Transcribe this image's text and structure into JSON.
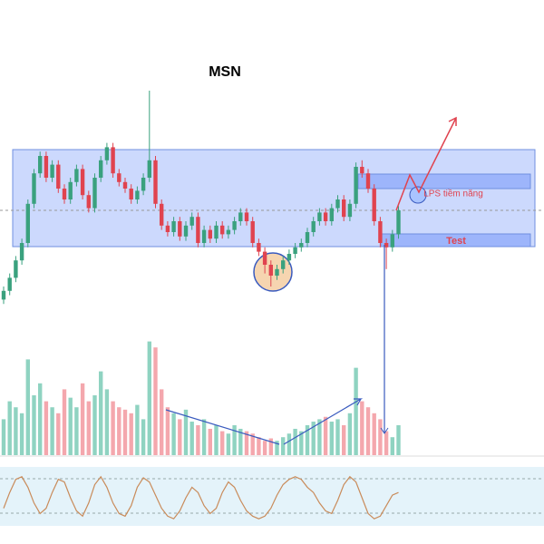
{
  "chart_data": {
    "type": "candlestick",
    "title": "MSN",
    "annotations": [
      "LPS tiềm năng",
      "Test"
    ],
    "open": [
      4,
      8,
      14,
      22,
      30,
      48,
      62,
      70,
      60,
      66,
      55,
      50,
      58,
      64,
      52,
      46,
      60,
      68,
      74,
      62,
      58,
      55,
      50,
      54,
      60,
      68,
      48,
      38,
      35,
      40,
      33,
      38,
      42,
      30,
      36,
      32,
      38,
      34,
      36,
      40,
      44,
      40,
      30,
      26,
      20,
      15,
      18,
      22,
      25,
      28,
      30,
      35,
      40,
      44,
      40,
      46,
      50,
      42,
      48,
      65,
      62,
      55,
      40,
      30,
      28,
      34
    ],
    "high": [
      10,
      16,
      24,
      32,
      50,
      64,
      72,
      72,
      68,
      68,
      57,
      60,
      66,
      66,
      54,
      62,
      70,
      76,
      76,
      64,
      60,
      57,
      56,
      62,
      100,
      70,
      50,
      40,
      42,
      42,
      40,
      44,
      44,
      38,
      38,
      40,
      40,
      38,
      42,
      46,
      46,
      42,
      32,
      28,
      22,
      20,
      24,
      27,
      30,
      32,
      37,
      42,
      46,
      46,
      48,
      52,
      52,
      50,
      67,
      68,
      64,
      57,
      42,
      32,
      36,
      47
    ],
    "low": [
      2,
      6,
      12,
      20,
      28,
      46,
      60,
      58,
      58,
      53,
      48,
      48,
      56,
      50,
      44,
      44,
      58,
      66,
      60,
      56,
      53,
      48,
      48,
      52,
      58,
      46,
      36,
      33,
      33,
      31,
      31,
      36,
      28,
      28,
      30,
      30,
      32,
      32,
      34,
      38,
      38,
      28,
      24,
      16,
      10,
      13,
      16,
      20,
      23,
      26,
      28,
      33,
      38,
      38,
      38,
      44,
      40,
      40,
      46,
      60,
      53,
      38,
      28,
      18,
      26,
      32
    ],
    "close": [
      8,
      14,
      22,
      30,
      48,
      62,
      70,
      60,
      66,
      55,
      50,
      58,
      64,
      52,
      46,
      60,
      68,
      74,
      62,
      58,
      55,
      50,
      54,
      60,
      68,
      48,
      38,
      35,
      40,
      33,
      38,
      42,
      30,
      36,
      32,
      38,
      34,
      36,
      40,
      44,
      40,
      30,
      26,
      20,
      15,
      18,
      22,
      25,
      28,
      30,
      35,
      40,
      44,
      40,
      46,
      50,
      42,
      48,
      65,
      62,
      55,
      40,
      30,
      28,
      34,
      45
    ],
    "volume": [
      30,
      45,
      40,
      35,
      80,
      50,
      60,
      45,
      40,
      35,
      55,
      48,
      40,
      60,
      45,
      50,
      70,
      55,
      45,
      40,
      38,
      35,
      42,
      30,
      95,
      90,
      55,
      40,
      35,
      30,
      38,
      28,
      25,
      30,
      22,
      25,
      20,
      18,
      25,
      22,
      20,
      18,
      15,
      12,
      14,
      12,
      15,
      18,
      22,
      20,
      25,
      28,
      30,
      32,
      28,
      30,
      25,
      35,
      73,
      45,
      40,
      35,
      30,
      20,
      15,
      25
    ],
    "oscillator": [
      30,
      60,
      85,
      90,
      70,
      40,
      20,
      30,
      60,
      85,
      80,
      50,
      25,
      15,
      40,
      75,
      90,
      70,
      40,
      20,
      15,
      35,
      70,
      88,
      80,
      55,
      30,
      15,
      10,
      25,
      50,
      70,
      60,
      35,
      20,
      30,
      60,
      80,
      70,
      45,
      25,
      15,
      10,
      15,
      30,
      55,
      75,
      85,
      90,
      85,
      70,
      60,
      40,
      25,
      20,
      45,
      75,
      90,
      80,
      50,
      20,
      10,
      15,
      35,
      55,
      60
    ],
    "ylim": [
      0,
      100
    ],
    "up_color": "#3aa17e",
    "down_color": "#e0434f",
    "volume_up_color": "#8fd3c1",
    "volume_down_color": "#f4a7ad",
    "oscillator_color": "#c98b5a"
  }
}
